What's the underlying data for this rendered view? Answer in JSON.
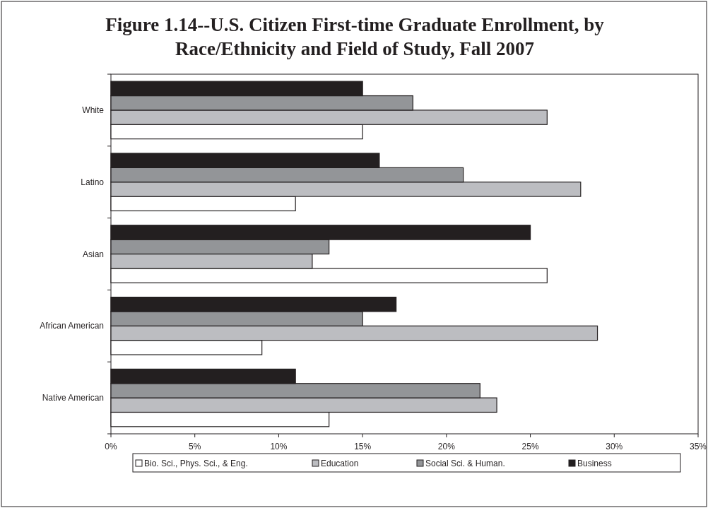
{
  "chart_data": {
    "type": "bar",
    "orientation": "horizontal",
    "title": "Figure 1.14--U.S. Citizen First-time Graduate Enrollment, by Race/Ethnicity and Field of Study, Fall 2007",
    "categories": [
      "White",
      "Latino",
      "Asian",
      "African American",
      "Native American"
    ],
    "series": [
      {
        "name": "Bio. Sci., Phys. Sci., & Eng.",
        "color": "#ffffff",
        "values": [
          15,
          11,
          26,
          9,
          13
        ]
      },
      {
        "name": "Education",
        "color": "#bcbdc1",
        "values": [
          26,
          28,
          12,
          29,
          23
        ]
      },
      {
        "name": "Social Sci. & Human.",
        "color": "#939598",
        "values": [
          18,
          21,
          13,
          15,
          22
        ]
      },
      {
        "name": "Business",
        "color": "#231f20",
        "values": [
          15,
          16,
          25,
          17,
          11
        ]
      }
    ],
    "xlim": [
      0,
      35
    ],
    "xticks": [
      {
        "value": 0,
        "label": "0%"
      },
      {
        "value": 5,
        "label": "5%"
      },
      {
        "value": 10,
        "label": "10%"
      },
      {
        "value": 15,
        "label": "15%"
      },
      {
        "value": 20,
        "label": "20%"
      },
      {
        "value": 25,
        "label": "25%"
      },
      {
        "value": 30,
        "label": "30%"
      },
      {
        "value": 35,
        "label": "35%"
      }
    ],
    "grid": false,
    "legend": "bottom"
  }
}
